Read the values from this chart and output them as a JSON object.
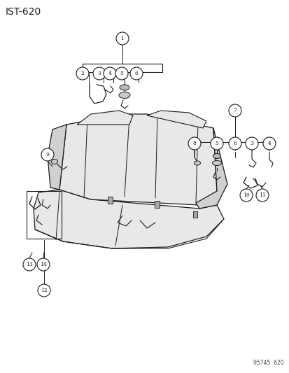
{
  "title": "IST-620",
  "watermark": "95745  620",
  "bg_color": "#ffffff",
  "line_color": "#1a1a1a",
  "fill_light": "#e8e8e8",
  "fill_mid": "#d0d0d0",
  "figsize": [
    4.14,
    5.33
  ],
  "dpi": 100
}
